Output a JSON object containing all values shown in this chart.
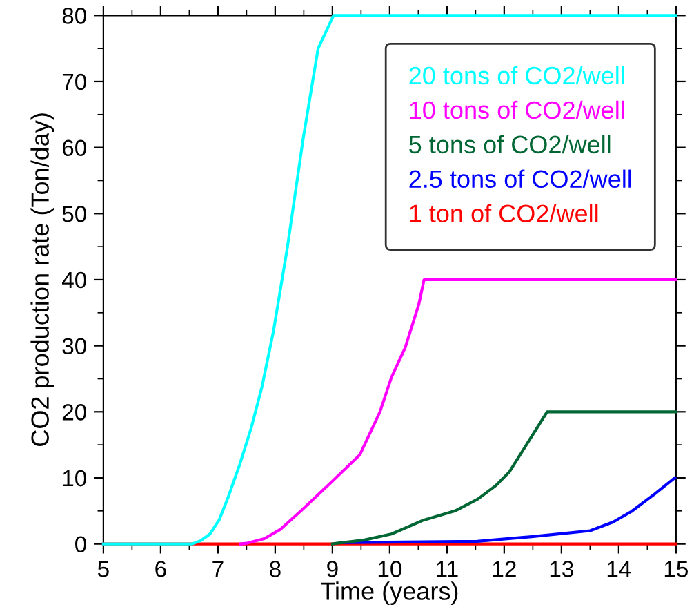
{
  "chart_data": {
    "type": "line",
    "xlabel": "Time (years)",
    "ylabel": "CO2 production rate (Ton/day)",
    "xlim": [
      5,
      15
    ],
    "xticks": [
      5,
      6,
      7,
      8,
      9,
      10,
      11,
      12,
      13,
      14,
      15
    ],
    "ylim": [
      0,
      80
    ],
    "yticks": [
      0,
      10,
      20,
      30,
      40,
      50,
      60,
      70,
      80
    ],
    "grid": false,
    "legend": "top right",
    "marker": "none",
    "line_style": "solid",
    "series": [
      {
        "name": "20 tons of CO2/well",
        "color": "#00ffff",
        "x": [
          5,
          6.55,
          6.7,
          6.86,
          7.02,
          7.18,
          7.38,
          7.58,
          7.77,
          7.97,
          8.21,
          8.49,
          8.75,
          9.02,
          15
        ],
        "values": [
          0,
          0,
          0.5,
          1.5,
          3.6,
          7.1,
          12,
          17.5,
          23.8,
          32.2,
          44.7,
          61.4,
          75,
          80,
          80
        ]
      },
      {
        "name": "10 tons of CO2/well",
        "color": "#ff00ff",
        "x": [
          7.4,
          7.5,
          7.81,
          8.09,
          8.45,
          9.0,
          9.48,
          9.83,
          10.03,
          10.27,
          10.51,
          10.6,
          15
        ],
        "values": [
          0,
          0.1,
          0.8,
          2.2,
          5,
          9.5,
          13.5,
          20,
          25.2,
          29.7,
          36.3,
          40,
          40
        ]
      },
      {
        "name": "5 tons of CO2/well",
        "color": "#006633",
        "x": [
          9.0,
          9.08,
          9.56,
          10.03,
          10.59,
          11.14,
          11.54,
          11.85,
          12.09,
          12.75,
          15
        ],
        "values": [
          0,
          0.1,
          0.6,
          1.5,
          3.6,
          5,
          6.8,
          8.8,
          10.9,
          20,
          20
        ]
      },
      {
        "name": "2.5 tons of CO2/well",
        "color": "#0000ff",
        "x": [
          9.2,
          11.53,
          12.48,
          13.5,
          13.9,
          14.22,
          14.62,
          14.98
        ],
        "values": [
          0.2,
          0.4,
          1.1,
          2.0,
          3.3,
          4.9,
          7.5,
          10
        ]
      },
      {
        "name": "1 ton of CO2/well",
        "color": "#ff0000",
        "x": [
          5,
          15
        ],
        "values": [
          0,
          0
        ]
      }
    ]
  }
}
